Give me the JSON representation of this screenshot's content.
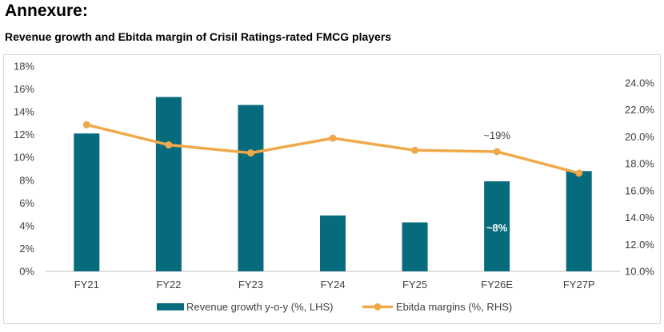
{
  "page": {
    "heading": "Annexure:",
    "subheading": "Revenue growth and Ebitda margin of Crisil Ratings-rated FMCG players"
  },
  "colors": {
    "bar": "#076b7e",
    "line": "#f0a94a",
    "axis_text": "#404040",
    "axis_line": "#bfbfbf"
  },
  "chart_data": {
    "type": "bar",
    "categories": [
      "FY21",
      "FY22",
      "FY23",
      "FY24",
      "FY25",
      "FY26E",
      "FY27P"
    ],
    "series": [
      {
        "name": "Revenue growth y-o-y (%, LHS)",
        "type": "bar",
        "axis": "left",
        "values": [
          12.1,
          15.3,
          14.6,
          4.9,
          4.3,
          7.9,
          8.8
        ]
      },
      {
        "name": "Ebitda margins (%, RHS)",
        "type": "line",
        "axis": "right",
        "values": [
          20.9,
          19.4,
          18.8,
          19.9,
          19.0,
          18.9,
          17.3
        ]
      }
    ],
    "left_axis": {
      "ylim": [
        0,
        18
      ],
      "ticks": [
        "0%",
        "2%",
        "4%",
        "6%",
        "8%",
        "10%",
        "12%",
        "14%",
        "16%",
        "18%"
      ]
    },
    "right_axis": {
      "ylim": [
        10,
        24
      ],
      "ticks": [
        "10.0%",
        "12.0%",
        "14.0%",
        "16.0%",
        "18.0%",
        "20.0%",
        "22.0%",
        "24.0%"
      ]
    },
    "annotations": [
      {
        "text": "~19%",
        "series": "line",
        "category": "FY26E"
      },
      {
        "text": "~8%",
        "series": "bar",
        "category": "FY26E"
      }
    ],
    "legend_position": "bottom",
    "grid": false
  }
}
